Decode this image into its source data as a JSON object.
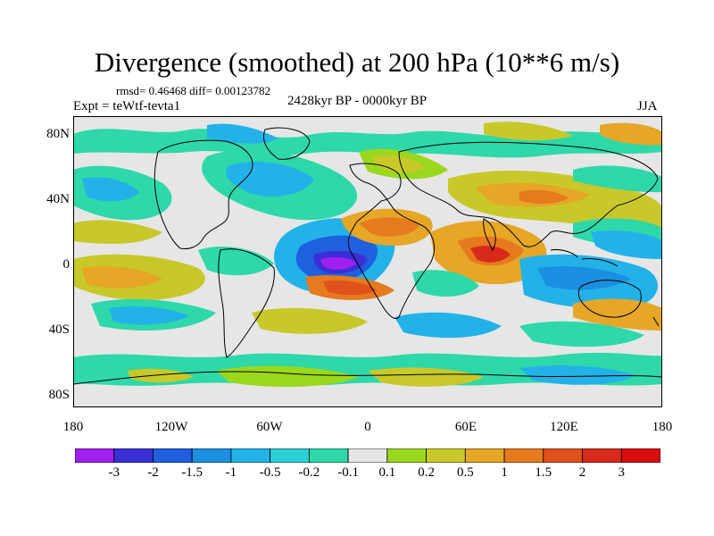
{
  "title": "Divergence (smoothed) at 200 hPa (10**6 m/s)",
  "stats": "rmsd= 0.46468 diff= 0.00123782",
  "experiment": "Expt = teWtf-tevta1",
  "period": "2428kyr BP - 0000kyr BP",
  "season": "JJA",
  "lat_labels": [
    "80N",
    "40N",
    "0",
    "40S",
    "80S"
  ],
  "lon_labels": [
    "180",
    "120W",
    "60W",
    "0",
    "60E",
    "120E",
    "180"
  ],
  "colorbar": {
    "labels": [
      "-3",
      "-2",
      "-1.5",
      "-1",
      "-0.5",
      "-0.2",
      "-0.1",
      "0.1",
      "0.2",
      "0.5",
      "1",
      "1.5",
      "2",
      "3"
    ],
    "colors": [
      "#a020f0",
      "#3a2fd6",
      "#1f5fe0",
      "#1c8fe0",
      "#22b2e8",
      "#2bd0d4",
      "#2ed8a8",
      "#e6e6e6",
      "#9ad81e",
      "#c8c82a",
      "#e6a626",
      "#e67a1e",
      "#e0521c",
      "#d82a1a",
      "#d80e0e"
    ]
  },
  "map_colors": {
    "background": "#e6e6e6",
    "land_outline": "#000000"
  }
}
